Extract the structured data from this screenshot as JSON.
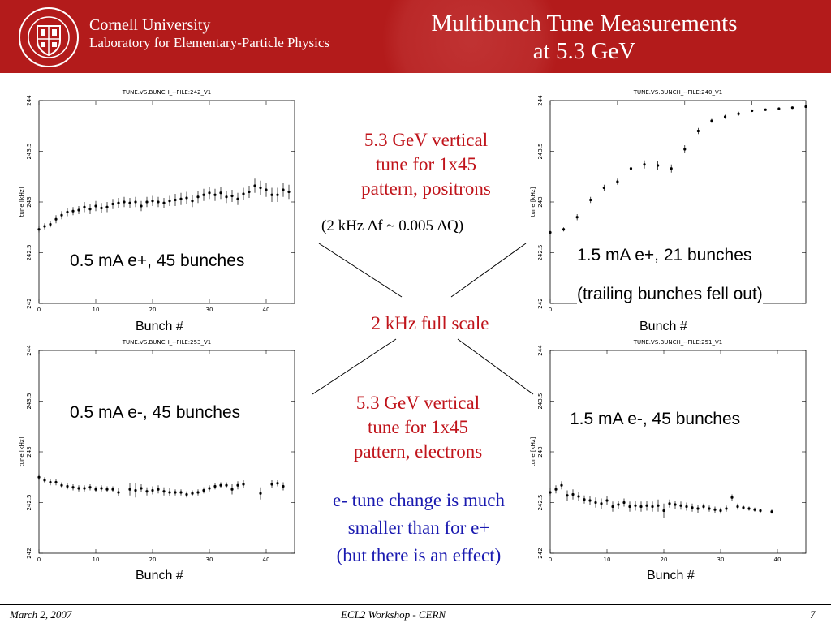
{
  "header": {
    "org_name": "Cornell University",
    "org_lab": "Laboratory for Elementary-Particle Physics",
    "title_line1": "Multibunch Tune Measurements",
    "title_line2": "at 5.3 GeV"
  },
  "colors": {
    "header_bg": "#b31b1b",
    "red_text": "#c0141b",
    "blue_text": "#1a1ab0"
  },
  "logo": {
    "icon": "cornell-seal-icon",
    "ring_top": "CORNELL UNIVERSITY",
    "ring_bottom": "FOUNDED A.D. 1865"
  },
  "annotations": {
    "top_center_red": [
      "5.3 GeV vertical",
      "tune for 1x45",
      "pattern, positrons"
    ],
    "conversion": "(2 kHz Δf ~ 0.005 ΔQ)",
    "full_scale": "2 kHz full scale",
    "bottom_center_red": [
      "5.3 GeV vertical",
      "tune for 1x45",
      "pattern, electrons"
    ],
    "bottom_center_blue": [
      "e- tune change is much",
      "smaller than for e+",
      "(but there is an effect)"
    ]
  },
  "footer": {
    "date": "March 2, 2007",
    "event": "ECL2 Workshop - CERN",
    "page": "7"
  },
  "chart_data": [
    {
      "type": "scatter",
      "title": "TUNE.VS.BUNCH_--FILE:242_V1",
      "ylabel": "tune [kHz]",
      "xlabel": "Bunch #",
      "annotation": "0.5 mA e+, 45 bunches",
      "xlim": [
        0,
        45
      ],
      "ylim": [
        242,
        244
      ],
      "xticks": [
        0,
        10,
        20,
        30,
        40
      ],
      "yticks": [
        "242",
        "242.5",
        "243",
        "243.5",
        "244"
      ],
      "points": [
        [
          0,
          242.73,
          0.03
        ],
        [
          1,
          242.76,
          0.03
        ],
        [
          2,
          242.78,
          0.03
        ],
        [
          3,
          242.83,
          0.04
        ],
        [
          4,
          242.87,
          0.04
        ],
        [
          5,
          242.9,
          0.04
        ],
        [
          6,
          242.91,
          0.04
        ],
        [
          7,
          242.92,
          0.04
        ],
        [
          8,
          242.95,
          0.05
        ],
        [
          9,
          242.93,
          0.05
        ],
        [
          10,
          242.96,
          0.05
        ],
        [
          11,
          242.94,
          0.05
        ],
        [
          12,
          242.95,
          0.05
        ],
        [
          13,
          242.98,
          0.05
        ],
        [
          14,
          242.99,
          0.05
        ],
        [
          15,
          243.0,
          0.05
        ],
        [
          16,
          242.99,
          0.05
        ],
        [
          17,
          243.0,
          0.05
        ],
        [
          18,
          242.96,
          0.05
        ],
        [
          19,
          243.0,
          0.05
        ],
        [
          20,
          243.01,
          0.05
        ],
        [
          21,
          243.0,
          0.05
        ],
        [
          22,
          242.99,
          0.05
        ],
        [
          23,
          243.01,
          0.05
        ],
        [
          24,
          243.02,
          0.06
        ],
        [
          25,
          243.03,
          0.06
        ],
        [
          26,
          243.04,
          0.06
        ],
        [
          27,
          243.01,
          0.06
        ],
        [
          28,
          243.05,
          0.06
        ],
        [
          29,
          243.07,
          0.06
        ],
        [
          30,
          243.09,
          0.06
        ],
        [
          31,
          243.07,
          0.06
        ],
        [
          32,
          243.09,
          0.06
        ],
        [
          33,
          243.05,
          0.06
        ],
        [
          34,
          243.06,
          0.06
        ],
        [
          35,
          243.03,
          0.06
        ],
        [
          36,
          243.08,
          0.06
        ],
        [
          37,
          243.1,
          0.06
        ],
        [
          38,
          243.16,
          0.07
        ],
        [
          39,
          243.14,
          0.07
        ],
        [
          40,
          243.12,
          0.07
        ],
        [
          41,
          243.07,
          0.07
        ],
        [
          42,
          243.07,
          0.07
        ],
        [
          43,
          243.12,
          0.07
        ],
        [
          44,
          243.1,
          0.07
        ]
      ]
    },
    {
      "type": "scatter",
      "title": "TUNE.VS.BUNCH_--FILE:240_V1",
      "ylabel": "tune [kHz]",
      "xlabel": "Bunch #",
      "annotation": [
        "1.5 mA e+, 21 bunches",
        "(trailing bunches fell out)"
      ],
      "xlim": [
        0,
        19
      ],
      "ylim": [
        242,
        244
      ],
      "xticks": [
        0,
        5,
        10,
        15
      ],
      "yticks": [
        "242",
        "242.5",
        "243",
        "243.5",
        "244"
      ],
      "points": [
        [
          0,
          242.7,
          0.02
        ],
        [
          1,
          242.73,
          0.02
        ],
        [
          2,
          242.85,
          0.03
        ],
        [
          3,
          243.02,
          0.03
        ],
        [
          4,
          243.14,
          0.03
        ],
        [
          5,
          243.2,
          0.03
        ],
        [
          6,
          243.33,
          0.04
        ],
        [
          7,
          243.37,
          0.04
        ],
        [
          8,
          243.36,
          0.04
        ],
        [
          9,
          243.33,
          0.04
        ],
        [
          10,
          243.52,
          0.04
        ],
        [
          11,
          243.7,
          0.03
        ],
        [
          12,
          243.8,
          0.02
        ],
        [
          13,
          243.84,
          0.02
        ],
        [
          14,
          243.87,
          0.02
        ],
        [
          15,
          243.9,
          0.01
        ],
        [
          16,
          243.91,
          0.01
        ],
        [
          17,
          243.92,
          0.01
        ],
        [
          18,
          243.93,
          0.01
        ],
        [
          19,
          243.94,
          0.01
        ]
      ]
    },
    {
      "type": "scatter",
      "title": "TUNE.VS.BUNCH_--FILE:253_V1",
      "ylabel": "tune [kHz]",
      "xlabel": "Bunch #",
      "annotation": "0.5 mA e-, 45 bunches",
      "xlim": [
        0,
        45
      ],
      "ylim": [
        242,
        244
      ],
      "xticks": [
        0,
        10,
        20,
        30,
        40
      ],
      "yticks": [
        "242",
        "242.5",
        "243",
        "243.5",
        "244"
      ],
      "points": [
        [
          0,
          242.75,
          0.03
        ],
        [
          1,
          242.72,
          0.03
        ],
        [
          2,
          242.7,
          0.03
        ],
        [
          3,
          242.7,
          0.03
        ],
        [
          4,
          242.67,
          0.03
        ],
        [
          5,
          242.66,
          0.03
        ],
        [
          6,
          242.65,
          0.03
        ],
        [
          7,
          242.64,
          0.03
        ],
        [
          8,
          242.64,
          0.03
        ],
        [
          9,
          242.65,
          0.03
        ],
        [
          10,
          242.63,
          0.03
        ],
        [
          11,
          242.64,
          0.03
        ],
        [
          12,
          242.63,
          0.03
        ],
        [
          13,
          242.63,
          0.03
        ],
        [
          14,
          242.6,
          0.04
        ],
        [
          16,
          242.63,
          0.06
        ],
        [
          17,
          242.62,
          0.07
        ],
        [
          18,
          242.64,
          0.04
        ],
        [
          19,
          242.61,
          0.04
        ],
        [
          20,
          242.62,
          0.04
        ],
        [
          21,
          242.63,
          0.04
        ],
        [
          22,
          242.61,
          0.04
        ],
        [
          23,
          242.6,
          0.04
        ],
        [
          24,
          242.6,
          0.03
        ],
        [
          25,
          242.6,
          0.03
        ],
        [
          26,
          242.58,
          0.03
        ],
        [
          27,
          242.59,
          0.03
        ],
        [
          28,
          242.6,
          0.03
        ],
        [
          29,
          242.62,
          0.03
        ],
        [
          30,
          242.64,
          0.03
        ],
        [
          31,
          242.66,
          0.03
        ],
        [
          32,
          242.67,
          0.03
        ],
        [
          33,
          242.67,
          0.03
        ],
        [
          34,
          242.63,
          0.05
        ],
        [
          35,
          242.67,
          0.04
        ],
        [
          36,
          242.68,
          0.04
        ],
        [
          39,
          242.59,
          0.06
        ],
        [
          41,
          242.68,
          0.04
        ],
        [
          42,
          242.69,
          0.03
        ],
        [
          43,
          242.66,
          0.04
        ]
      ]
    },
    {
      "type": "scatter",
      "title": "TUNE.VS.BUNCH_--FILE:251_V1",
      "ylabel": "tune [kHz]",
      "xlabel": "Bunch #",
      "annotation": "1.5 mA e-, 45 bunches",
      "xlim": [
        0,
        45
      ],
      "ylim": [
        242,
        244
      ],
      "xticks": [
        0,
        10,
        20,
        30,
        40
      ],
      "yticks": [
        "242",
        "242.5",
        "243",
        "243.5",
        "244"
      ],
      "points": [
        [
          0,
          242.6,
          0.04
        ],
        [
          1,
          242.63,
          0.04
        ],
        [
          2,
          242.67,
          0.04
        ],
        [
          3,
          242.57,
          0.05
        ],
        [
          4,
          242.58,
          0.05
        ],
        [
          5,
          242.56,
          0.04
        ],
        [
          6,
          242.53,
          0.04
        ],
        [
          7,
          242.52,
          0.04
        ],
        [
          8,
          242.5,
          0.05
        ],
        [
          9,
          242.49,
          0.05
        ],
        [
          10,
          242.52,
          0.04
        ],
        [
          11,
          242.46,
          0.05
        ],
        [
          12,
          242.48,
          0.04
        ],
        [
          13,
          242.5,
          0.04
        ],
        [
          14,
          242.46,
          0.05
        ],
        [
          15,
          242.47,
          0.05
        ],
        [
          16,
          242.46,
          0.05
        ],
        [
          17,
          242.47,
          0.05
        ],
        [
          18,
          242.46,
          0.05
        ],
        [
          19,
          242.47,
          0.06
        ],
        [
          20,
          242.42,
          0.07
        ],
        [
          21,
          242.49,
          0.04
        ],
        [
          22,
          242.48,
          0.04
        ],
        [
          23,
          242.47,
          0.04
        ],
        [
          24,
          242.46,
          0.04
        ],
        [
          25,
          242.45,
          0.04
        ],
        [
          26,
          242.44,
          0.04
        ],
        [
          27,
          242.46,
          0.03
        ],
        [
          28,
          242.44,
          0.03
        ],
        [
          29,
          242.43,
          0.03
        ],
        [
          30,
          242.42,
          0.03
        ],
        [
          31,
          242.44,
          0.03
        ],
        [
          32,
          242.55,
          0.03
        ],
        [
          33,
          242.46,
          0.03
        ],
        [
          34,
          242.45,
          0.02
        ],
        [
          35,
          242.44,
          0.02
        ],
        [
          36,
          242.43,
          0.02
        ],
        [
          37,
          242.42,
          0.02
        ],
        [
          39,
          242.41,
          0.02
        ]
      ]
    }
  ]
}
